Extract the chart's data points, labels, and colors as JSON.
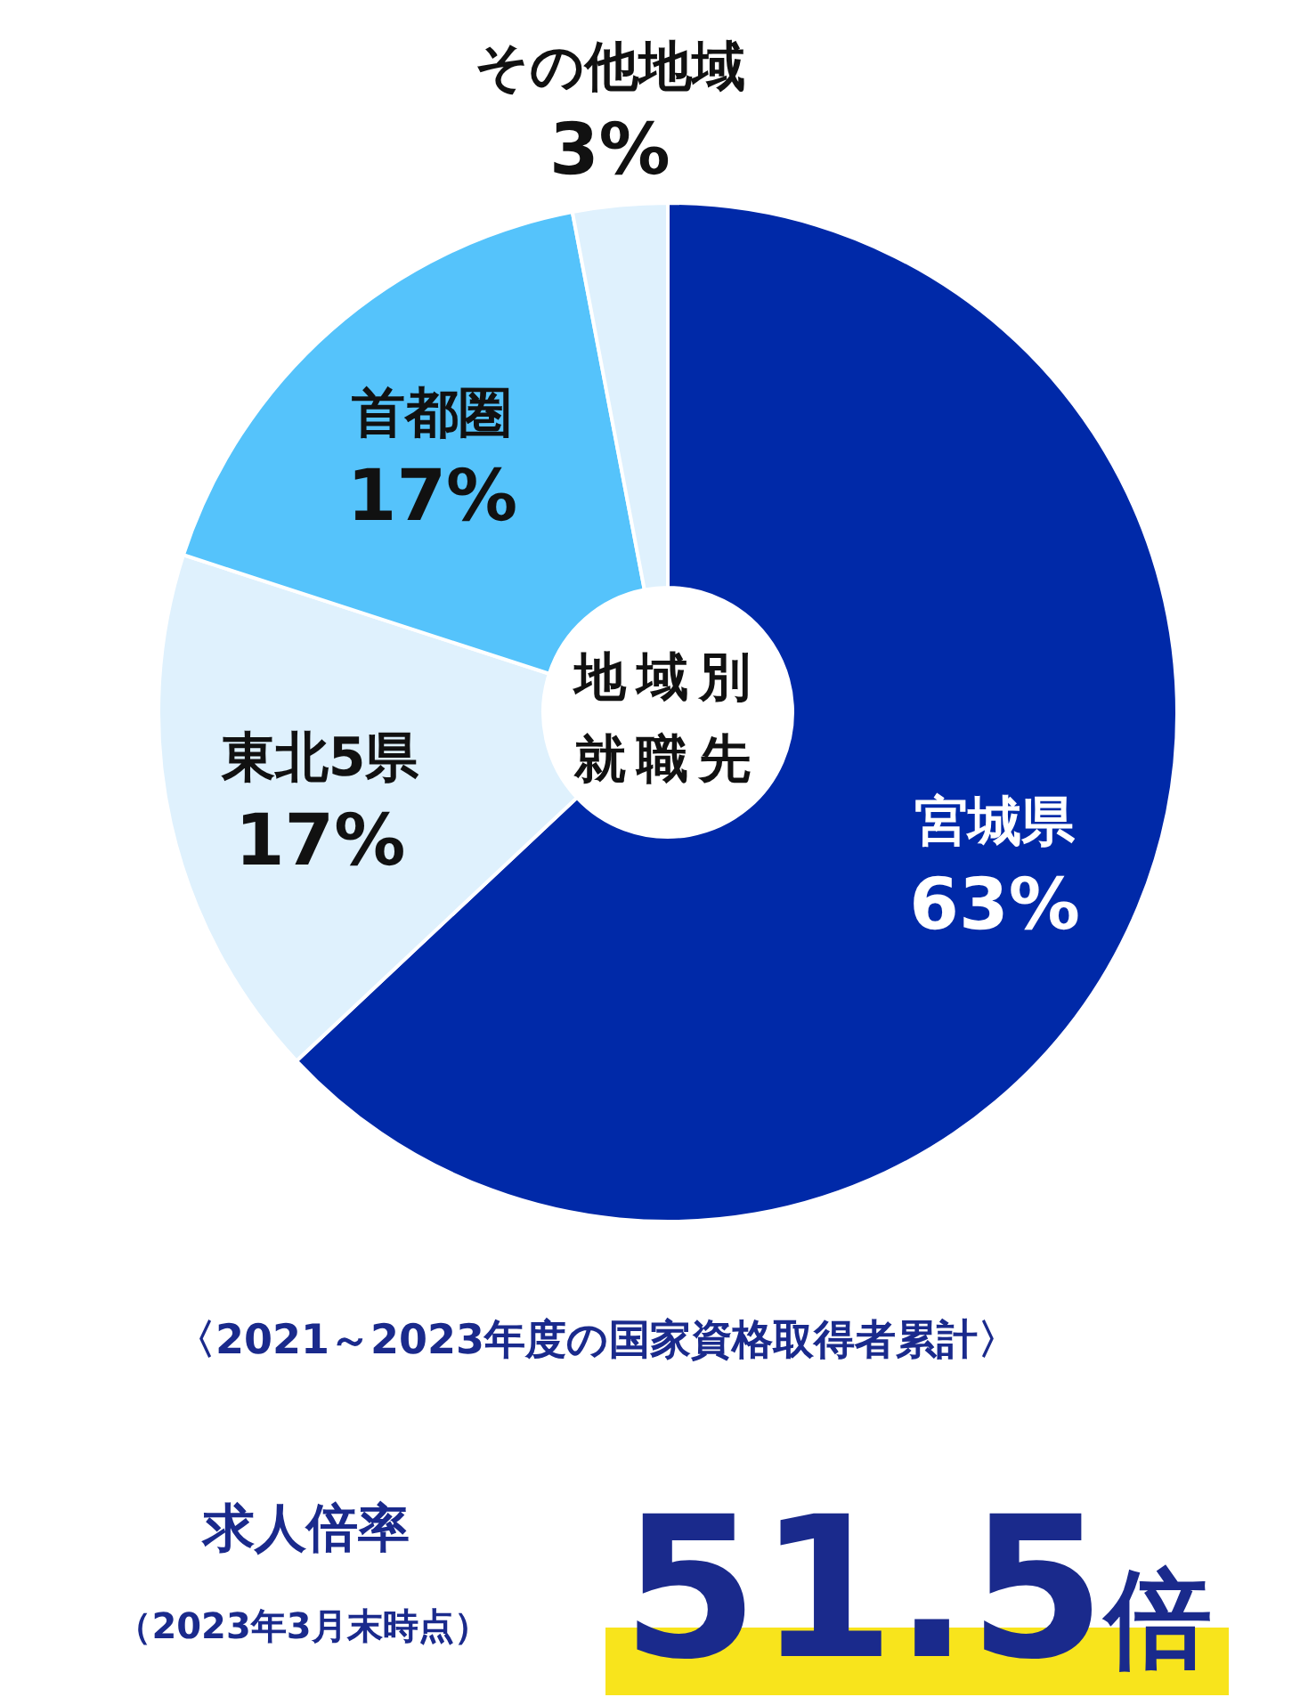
{
  "chart_data": {
    "type": "donut",
    "title": "地域別就職先",
    "subtitle": "〈2021～2023年度の国家資格取得者累計〉",
    "categories": [
      "宮城県",
      "東北5県",
      "首都圏",
      "その他地域"
    ],
    "values": [
      63,
      17,
      17,
      3
    ],
    "colors": [
      "#0029a8",
      "#dff1fd",
      "#55c3fb",
      "#dff1fd"
    ],
    "value_labels": [
      "63%",
      "17%",
      "17%",
      "3%"
    ],
    "annotations": [
      "求人倍率",
      "（2023年3月末時点）",
      "51.5倍"
    ]
  }
}
